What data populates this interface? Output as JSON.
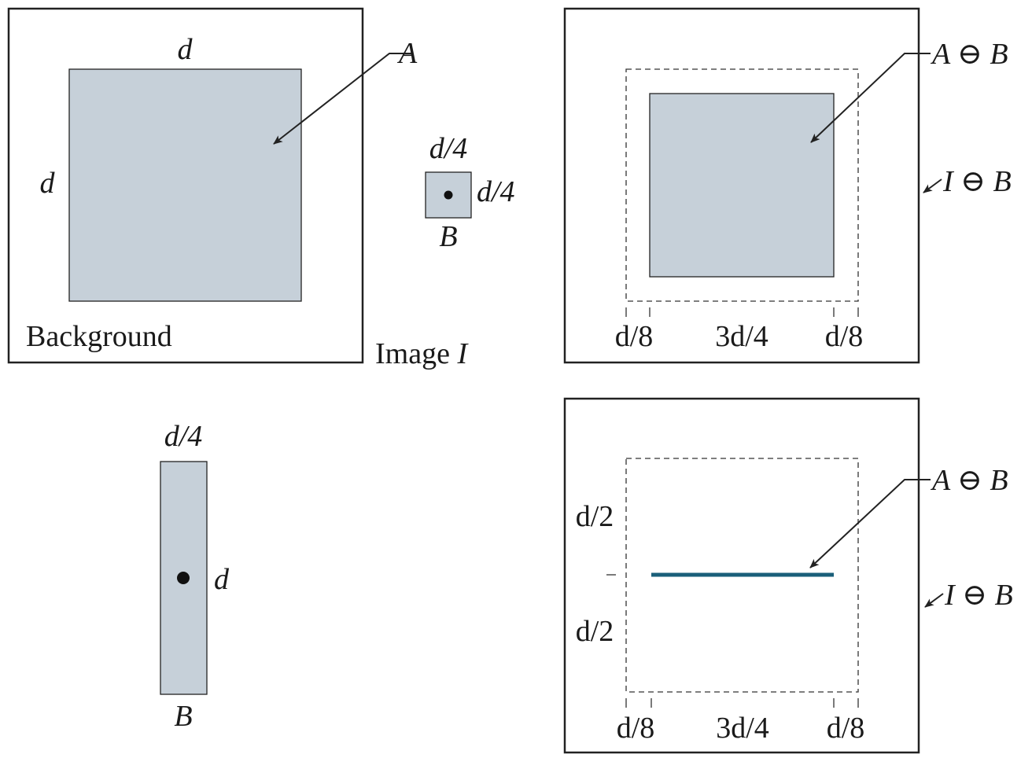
{
  "colors": {
    "object_fill": "#c6d0d9",
    "line_result": "#1a5f7a",
    "frame": "#222222",
    "background": "#ffffff"
  },
  "panel_image": {
    "object_label": "A",
    "top_dim": "d",
    "left_dim": "d",
    "background_label": "Background",
    "caption_prefix": "Image ",
    "caption_var": "I"
  },
  "small_se": {
    "top_dim": "d/4",
    "right_dim": "d/4",
    "name": "B"
  },
  "tall_se": {
    "top_dim": "d/4",
    "right_dim": "d",
    "name": "B"
  },
  "erosion_square": {
    "result_label": "A ⊖ B",
    "image_label": "I ⊖ B",
    "bottom_dims": [
      "d/8",
      "3d/4",
      "d/8"
    ]
  },
  "erosion_line": {
    "result_label": "A ⊖ B",
    "image_label": "I ⊖ B",
    "left_dims": [
      "d/2",
      "d/2"
    ],
    "bottom_dims": [
      "d/8",
      "3d/4",
      "d/8"
    ]
  }
}
